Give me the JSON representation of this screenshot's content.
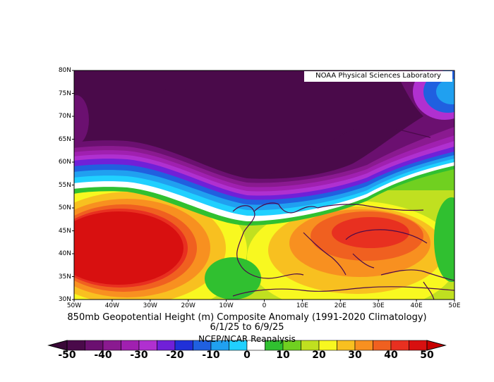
{
  "map": {
    "credit": "NOAA Physical Sciences Laboratory",
    "title_line1": "850mb Geopotential Height (m) Composite Anomaly (1991-2020 Climatology)",
    "title_line2": "6/1/25  to 6/9/25",
    "source": "NCEP/NCAR Reanalysis",
    "lat_labels": [
      "80N",
      "75N",
      "70N",
      "65N",
      "60N",
      "55N",
      "50N",
      "45N",
      "40N",
      "35N",
      "30N"
    ],
    "lon_labels": [
      "50W",
      "40W",
      "30W",
      "20W",
      "10W",
      "0",
      "10E",
      "20E",
      "30E",
      "40E",
      "50E"
    ],
    "extent": {
      "lon_min": -50,
      "lon_max": 50,
      "lat_min": 30,
      "lat_max": 80
    }
  },
  "colorbar": {
    "labels": [
      "-50",
      "-40",
      "-30",
      "-20",
      "-10",
      "0",
      "10",
      "20",
      "30",
      "40",
      "50"
    ],
    "bins": [
      -50,
      -45,
      -40,
      -35,
      -30,
      -25,
      -20,
      -15,
      -10,
      -5,
      0,
      5,
      10,
      15,
      20,
      25,
      30,
      35,
      40,
      45,
      50
    ],
    "colors": [
      "#4a0a4a",
      "#6b1070",
      "#8a1a90",
      "#a020b0",
      "#b030d0",
      "#7020d8",
      "#2030d8",
      "#2060e0",
      "#20a0f0",
      "#20d0ff",
      "#ffffff",
      "#30c030",
      "#70d020",
      "#c0e020",
      "#f8f820",
      "#f8c020",
      "#f89020",
      "#f06020",
      "#e83020",
      "#d81010"
    ],
    "end_left_color": "#3a0838",
    "end_right_color": "#c80000"
  },
  "colors": {
    "low_core": "#4a0a4a",
    "high_core": "#d81010",
    "coastline": "#4a0a4a"
  }
}
